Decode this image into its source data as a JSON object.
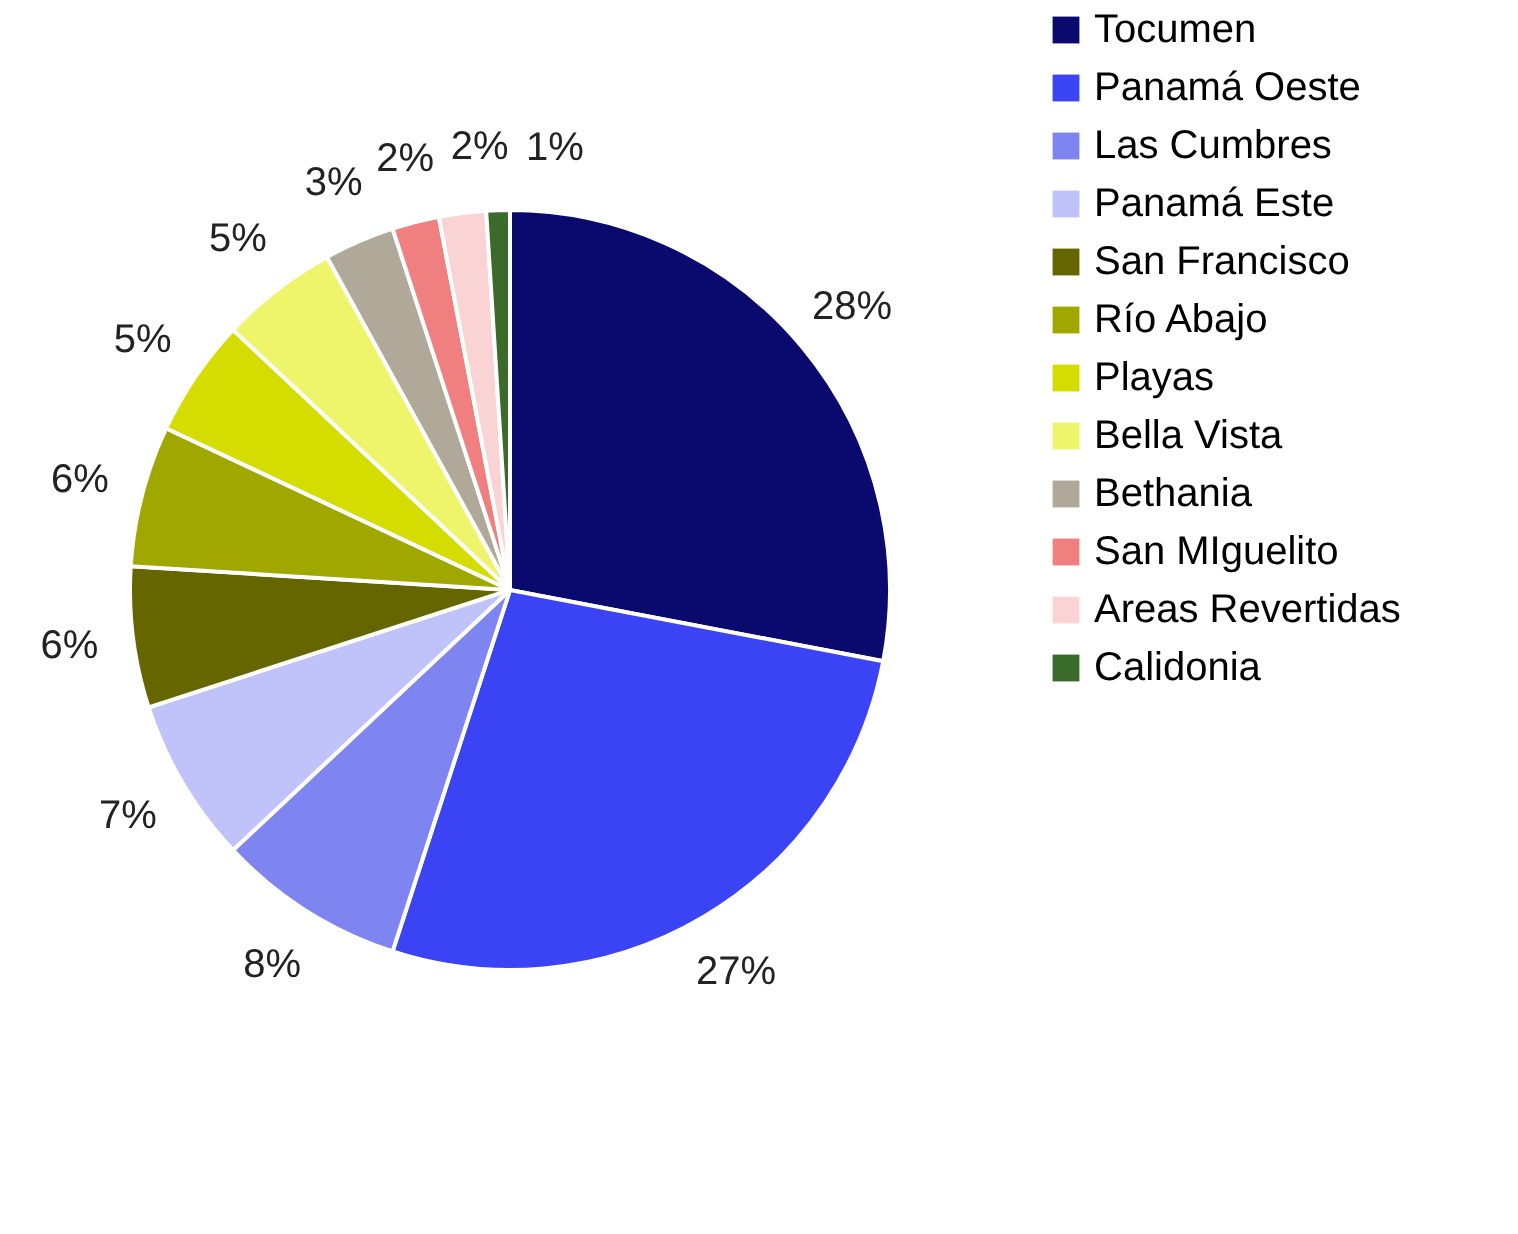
{
  "chart_data": {
    "type": "pie",
    "categories": [
      "Tocumen",
      "Panamá Oeste",
      "Las Cumbres",
      "Panamá Este",
      "San Francisco",
      "Río Abajo",
      "Playas",
      "Bella Vista",
      "Bethania",
      "San MIguelito",
      "Areas Revertidas",
      "Calidonia"
    ],
    "values": [
      28,
      27,
      8,
      7,
      6,
      6,
      5,
      5,
      3,
      2,
      2,
      1
    ],
    "value_labels": [
      "28%",
      "27%",
      "8%",
      "7%",
      "6%",
      "6%",
      "5%",
      "5%",
      "3%",
      "2%",
      "2%",
      "1%"
    ],
    "colors": [
      "#0a0a6e",
      "#3a44f5",
      "#7f85f0",
      "#c0c2fa",
      "#666600",
      "#a0a800",
      "#d4dc00",
      "#eef56a",
      "#b0a898",
      "#f08080",
      "#fad4d4",
      "#3a6b2a"
    ],
    "legend": "right"
  }
}
